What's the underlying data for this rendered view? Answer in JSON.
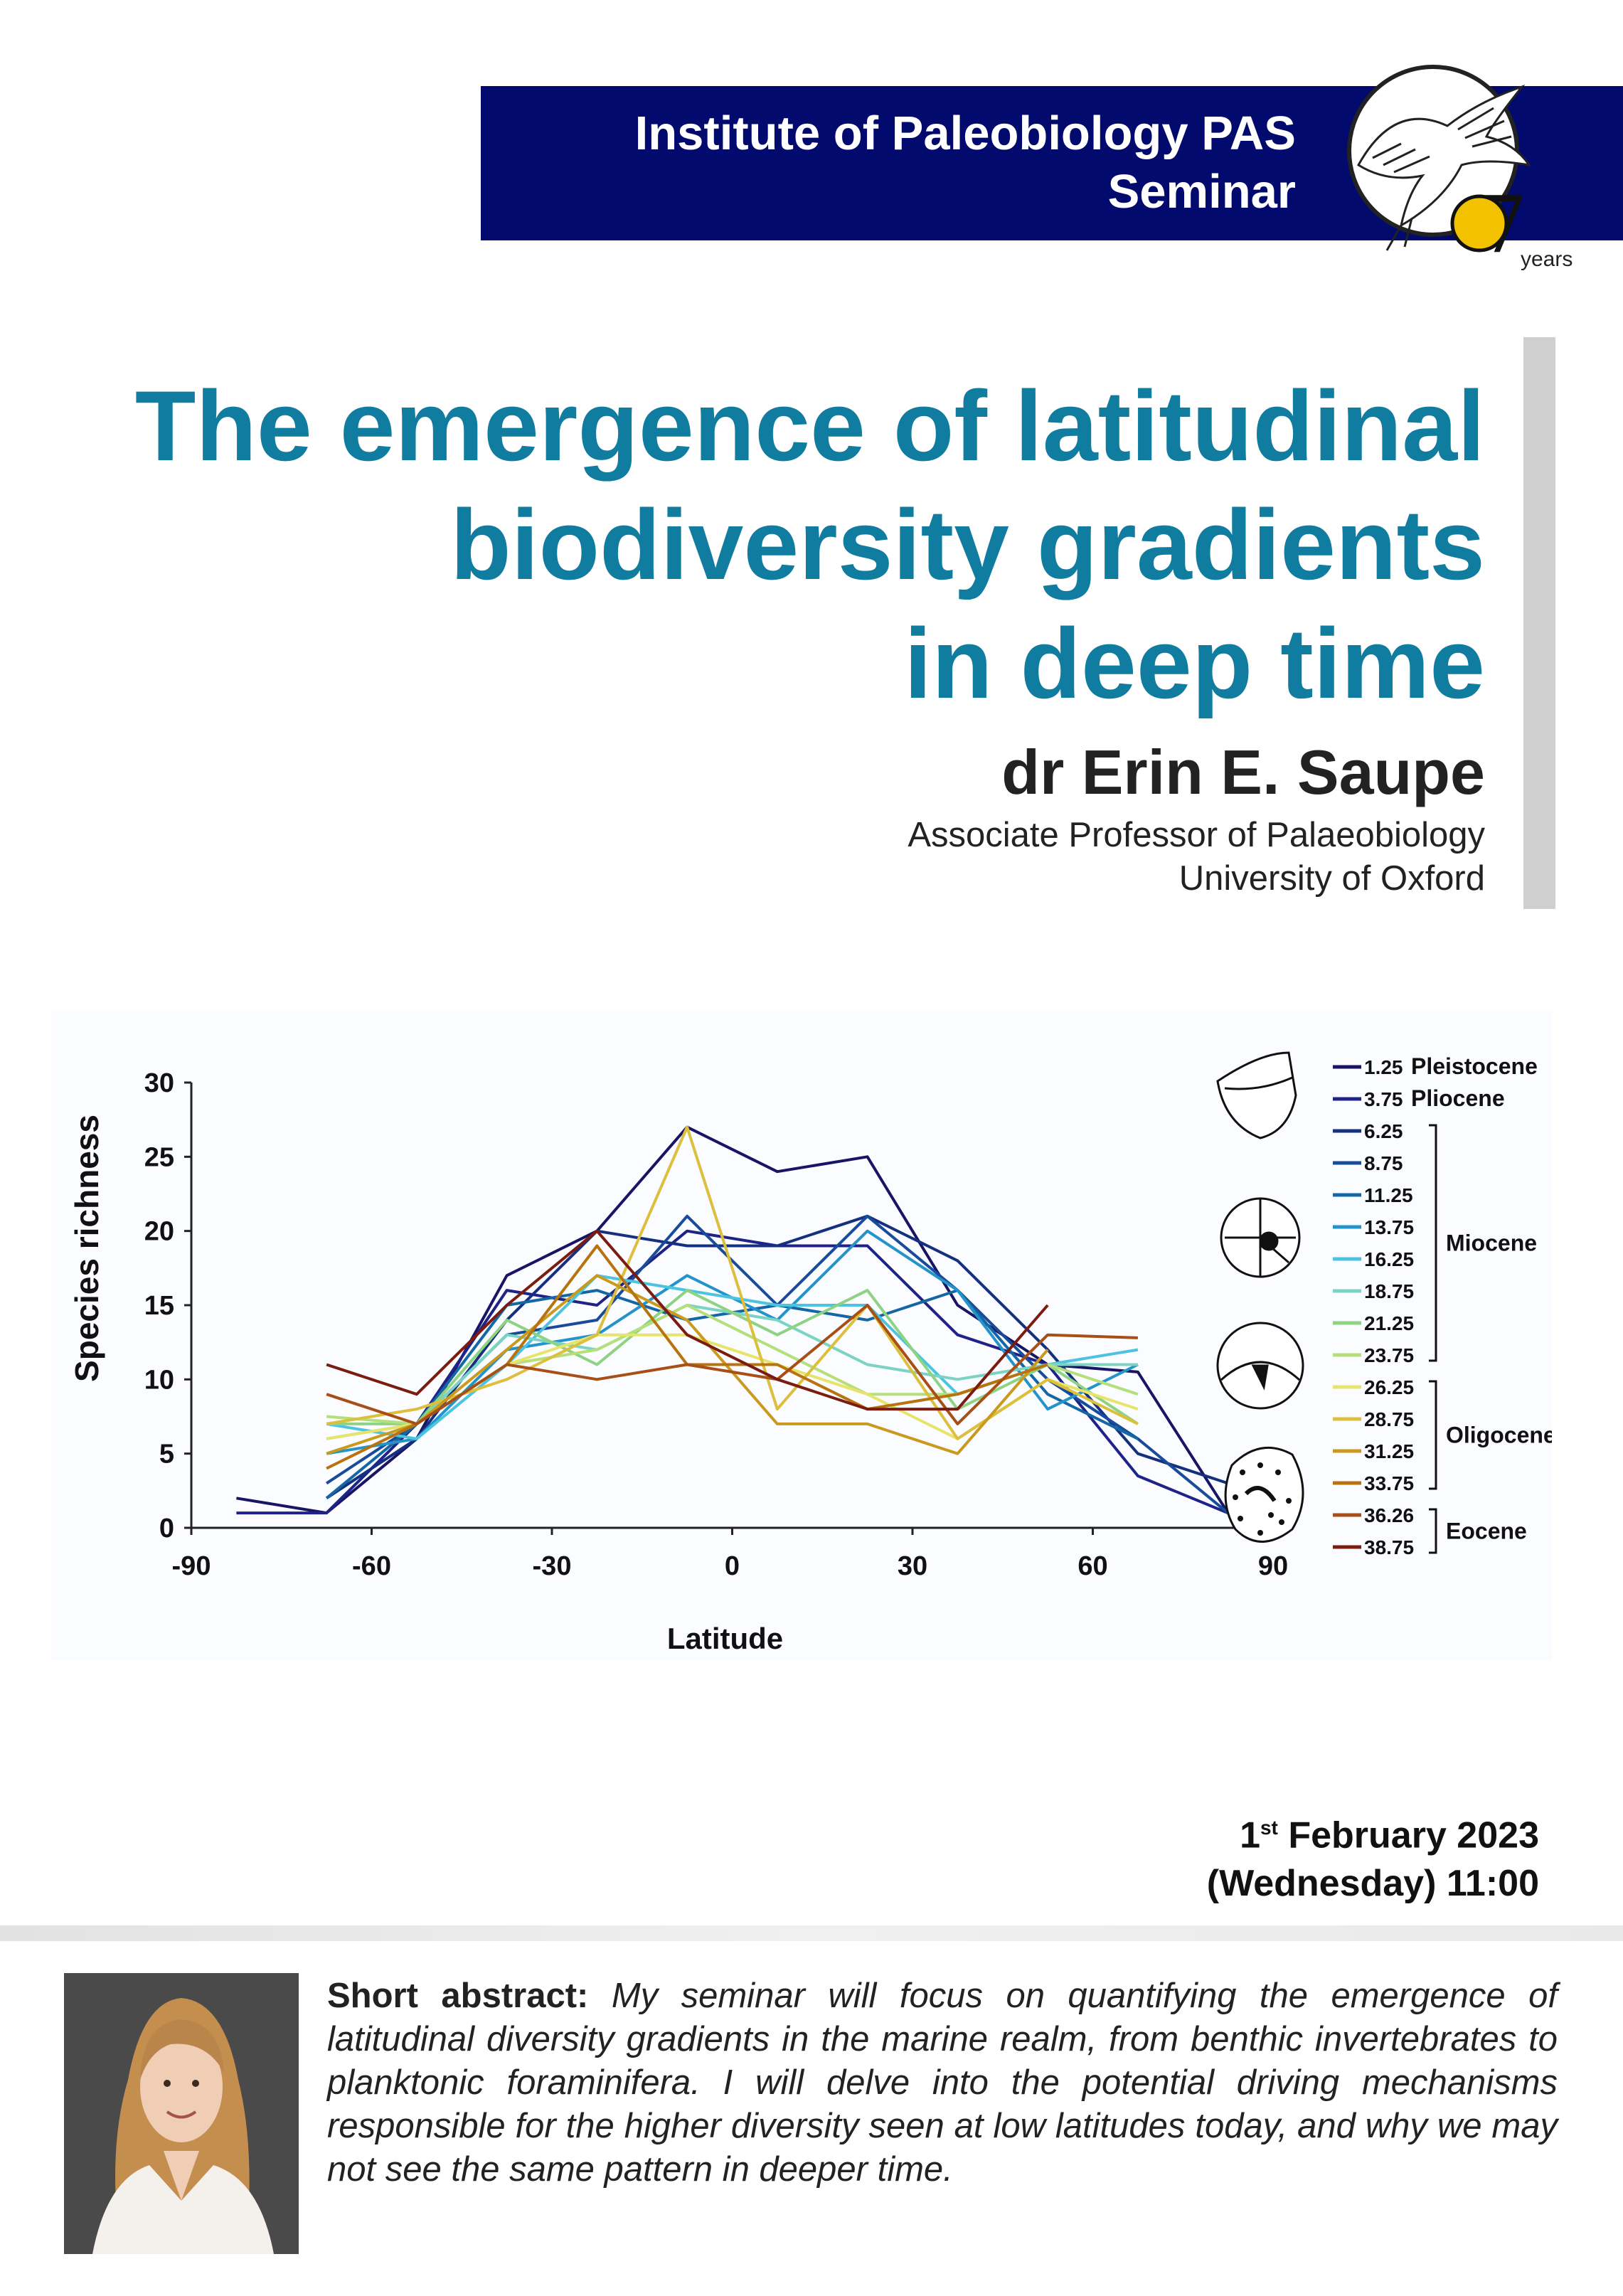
{
  "header": {
    "line1": "Institute of Paleobiology PAS",
    "line2": "Seminar",
    "logo_number": "7",
    "logo_years": "years"
  },
  "title": {
    "line1": "The emergence of latitudinal",
    "line2": "biodiversity gradients",
    "line3": "in deep time"
  },
  "speaker": {
    "name": "dr Erin E. Saupe",
    "position": "Associate Professor of Palaeobiology",
    "institution": "University of Oxford"
  },
  "chart_data": {
    "type": "line",
    "xlabel": "Latitude",
    "ylabel": "Species richness",
    "xlim": [
      -90,
      90
    ],
    "ylim": [
      0,
      30
    ],
    "xticks": [
      "-90",
      "-60",
      "-30",
      "0",
      "30",
      "60",
      "90"
    ],
    "yticks": [
      "0",
      "5",
      "10",
      "15",
      "20",
      "25",
      "30"
    ],
    "legend_position": "right",
    "x": [
      -82.5,
      -67.5,
      -52.5,
      -37.5,
      -22.5,
      -7.5,
      7.5,
      22.5,
      37.5,
      52.5,
      67.5,
      82.5
    ],
    "series": [
      {
        "name": "1.25",
        "color": "#1a1464",
        "values": [
          2,
          1,
          6,
          17,
          20,
          27,
          24,
          25,
          15,
          11,
          10.5,
          1
        ]
      },
      {
        "name": "3.75",
        "color": "#1f2388",
        "values": [
          1,
          1,
          7,
          16,
          15,
          20,
          19,
          19,
          13,
          11,
          3.5,
          1
        ]
      },
      {
        "name": "6.25",
        "color": "#15307f",
        "values": [
          null,
          2,
          6,
          14,
          20,
          19,
          19,
          21,
          18,
          12,
          5,
          3
        ]
      },
      {
        "name": "8.75",
        "color": "#184b9a",
        "values": [
          null,
          3,
          7,
          13,
          14,
          21,
          15,
          21,
          16,
          10,
          6,
          1
        ]
      },
      {
        "name": "11.25",
        "color": "#1467a4",
        "values": [
          null,
          2,
          7,
          15,
          16,
          14,
          15,
          14,
          16,
          9,
          6,
          null
        ]
      },
      {
        "name": "13.75",
        "color": "#2493c9",
        "values": [
          null,
          5,
          6,
          12,
          13,
          17,
          14,
          20,
          16,
          8,
          11,
          null
        ]
      },
      {
        "name": "16.25",
        "color": "#4cc4e0",
        "values": [
          null,
          7,
          6,
          11,
          17,
          16,
          15,
          15,
          9,
          11,
          12,
          null
        ]
      },
      {
        "name": "18.75",
        "color": "#7bd3c4",
        "values": [
          null,
          6,
          7,
          13,
          12,
          15,
          14,
          11,
          10,
          11,
          11,
          null
        ]
      },
      {
        "name": "21.25",
        "color": "#8ed383",
        "values": [
          null,
          7,
          7,
          14,
          11,
          16,
          13,
          16,
          8,
          11,
          7,
          null
        ]
      },
      {
        "name": "23.75",
        "color": "#b4df7a",
        "values": [
          null,
          7.5,
          7,
          11,
          12,
          15,
          12,
          9,
          9,
          11,
          9,
          null
        ]
      },
      {
        "name": "26.25",
        "color": "#e7e46b",
        "values": [
          null,
          6,
          7,
          11,
          13,
          13,
          11,
          9,
          6,
          10,
          8,
          null
        ]
      },
      {
        "name": "28.75",
        "color": "#dcbf3c",
        "values": [
          null,
          7,
          8,
          10,
          13,
          27,
          8,
          15,
          6,
          10,
          7,
          null
        ]
      },
      {
        "name": "31.25",
        "color": "#c99a1d",
        "values": [
          null,
          5,
          7,
          12,
          17,
          14,
          7,
          7,
          5,
          12,
          null,
          null
        ]
      },
      {
        "name": "33.75",
        "color": "#b8730f",
        "values": [
          null,
          4,
          7,
          11,
          19,
          11,
          11,
          8,
          9,
          11,
          null,
          null
        ]
      },
      {
        "name": "36.26",
        "color": "#a74f16",
        "values": [
          null,
          9,
          7,
          11,
          10,
          11,
          10,
          15,
          7,
          13,
          12.8,
          null
        ]
      },
      {
        "name": "38.75",
        "color": "#7a1c10",
        "values": [
          null,
          11,
          9,
          15,
          20,
          13,
          10,
          8,
          8,
          15,
          null,
          null
        ]
      }
    ],
    "epochs": [
      {
        "label": "Pleistocene"
      },
      {
        "label": "Pliocene"
      },
      {
        "label": "Miocene"
      },
      {
        "label": "Oligocene"
      },
      {
        "label": "Eocene"
      }
    ]
  },
  "event": {
    "day": "1",
    "day_suffix": "st",
    "month_year": " February 2023",
    "weekday_time": "(Wednesday) 11:00"
  },
  "abstract": {
    "label": "Short abstract:",
    "text": "My seminar will focus on quantifying the emergence of latitudinal diversity gradients in the marine realm, from benthic invertebrates to planktonic foraminifera. I will delve into the potential driving mechanisms responsible for the higher diversity seen at low latitudes today, and why we may not see the same pattern in deeper time."
  }
}
